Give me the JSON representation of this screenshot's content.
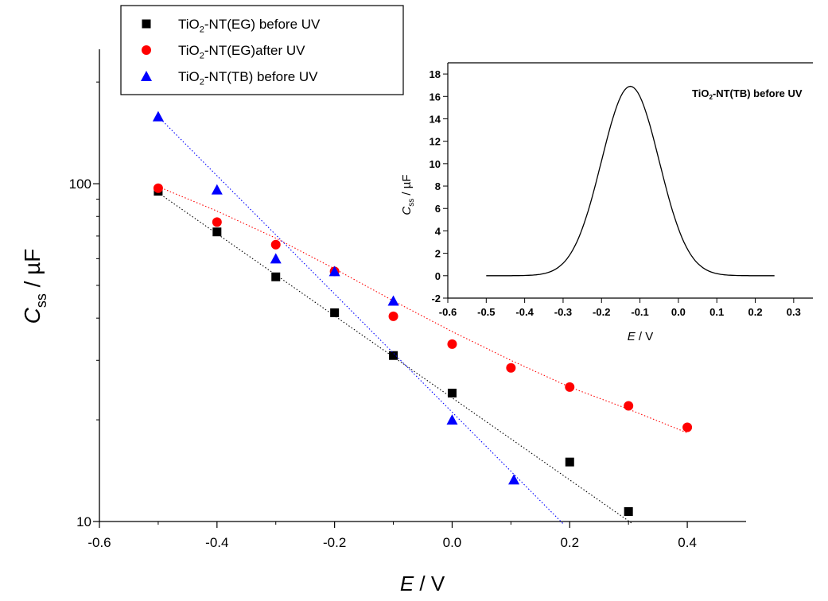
{
  "chart_data": [
    {
      "type": "scatter",
      "title": "",
      "xlabel": "E / V",
      "ylabel": "Css / µF",
      "y_scale": "log",
      "xlim": [
        -0.6,
        0.5
      ],
      "ylim": [
        10,
        250
      ],
      "grid": false,
      "legend_position": "top-left",
      "x_ticks": [
        "-0.6",
        "-0.4",
        "-0.2",
        "0.0",
        "0.2",
        "0.4"
      ],
      "y_ticks": [
        "10",
        "100"
      ],
      "series": [
        {
          "name": "TiO2-NT(EG) before UV",
          "marker": "square",
          "color": "#000000",
          "x": [
            -0.5,
            -0.4,
            -0.3,
            -0.2,
            -0.1,
            0.0,
            0.2,
            0.3
          ],
          "y": [
            95,
            72,
            53,
            41.5,
            31,
            24,
            15,
            10.7
          ],
          "fit": {
            "x": [
              -0.5,
              0.305
            ],
            "y": [
              94,
              9.9
            ]
          }
        },
        {
          "name": "TiO2-NT(EG)after UV",
          "marker": "circle",
          "color": "#ff0000",
          "x": [
            -0.5,
            -0.4,
            -0.3,
            -0.2,
            -0.1,
            0.0,
            0.1,
            0.2,
            0.3,
            0.4
          ],
          "y": [
            97,
            77,
            66,
            55,
            40.5,
            33.5,
            28.5,
            25,
            22,
            19
          ],
          "fit": {
            "x": [
              -0.5,
              -0.4,
              -0.3,
              -0.2,
              -0.1,
              0.0,
              0.1,
              0.2,
              0.3,
              0.4
            ],
            "y": [
              98,
              83,
              69,
              56,
              45,
              36.5,
              30,
              25,
              21.5,
              18.3
            ]
          }
        },
        {
          "name": "TiO2-NT(TB) before UV",
          "marker": "triangle",
          "color": "#0000ff",
          "x": [
            -0.5,
            -0.4,
            -0.3,
            -0.2,
            -0.1,
            0.0,
            0.105
          ],
          "y": [
            158,
            96,
            60,
            55,
            45,
            20,
            13.3
          ],
          "fit": {
            "x": [
              -0.5,
              0.19
            ],
            "y": [
              158,
              9.8
            ]
          }
        }
      ],
      "legend": [
        {
          "prefix": "TiO",
          "sub": "2",
          "suffix": "-NT(EG) before UV"
        },
        {
          "prefix": "TiO",
          "sub": "2",
          "suffix": "-NT(EG)after UV"
        },
        {
          "prefix": "TiO",
          "sub": "2",
          "suffix": "-NT(TB) before UV"
        }
      ],
      "axis_text": {
        "ylabel_main": "C",
        "ylabel_sub": "ss",
        "ylabel_unit": " / µF",
        "xlabel_var": "E",
        "xlabel_unit": " / V"
      }
    },
    {
      "type": "line",
      "title": "",
      "xlabel": "E / V",
      "ylabel": "Css / µF",
      "xlim": [
        -0.6,
        0.35
      ],
      "ylim": [
        -2,
        19
      ],
      "grid": false,
      "x_ticks": [
        "-0.6",
        "-0.5",
        "-0.4",
        "-0.3",
        "-0.2",
        "-0.1",
        "0.0",
        "0.1",
        "0.2",
        "0.3"
      ],
      "y_ticks": [
        "-2",
        "0",
        "2",
        "4",
        "6",
        "8",
        "10",
        "12",
        "14",
        "16",
        "18"
      ],
      "annotation": {
        "prefix": "TiO",
        "sub": "2",
        "suffix": "-NT(TB) before UV"
      },
      "curve": {
        "peak_x": -0.125,
        "peak_y": 16.9,
        "sigma": 0.075,
        "x_start": -0.5,
        "x_end": 0.25
      },
      "axis_text": {
        "ylabel_main": "C",
        "ylabel_sub": "ss",
        "ylabel_unit": " / µF",
        "xlabel_var": "E",
        "xlabel_unit": " / V"
      }
    }
  ]
}
